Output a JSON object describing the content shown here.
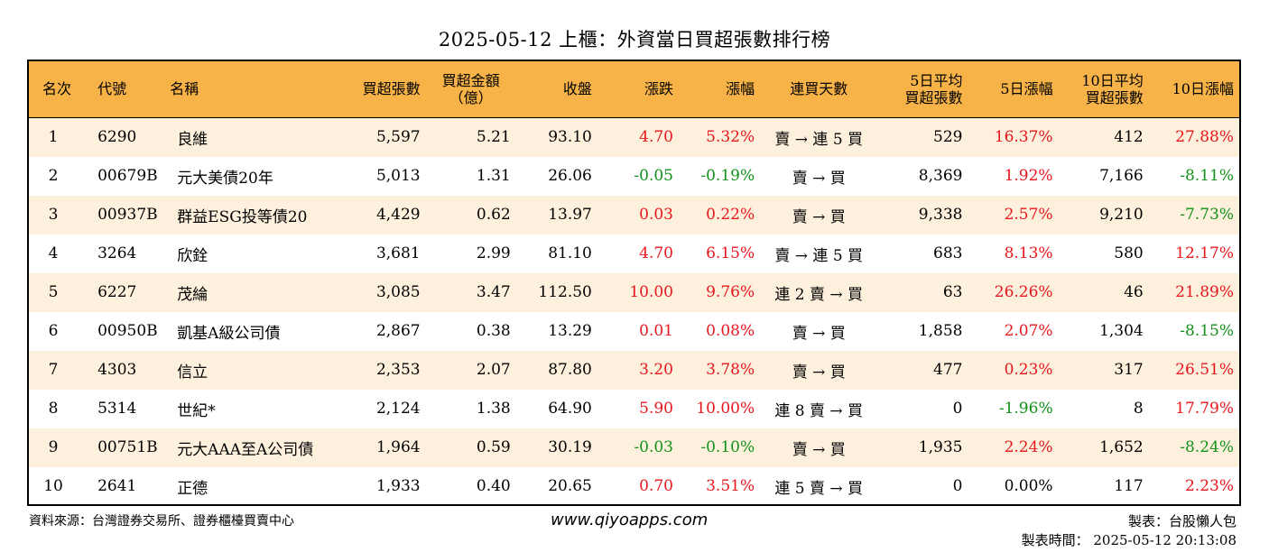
{
  "title": "2025-05-12 上櫃：外資當日買超張數排行榜",
  "colors": {
    "header_bg": "#f7b347",
    "row_alt": "#fdf1dd",
    "up": "#e8161d",
    "down": "#12911a"
  },
  "headers": [
    "名次",
    "代號",
    "名稱",
    "買超張數",
    "買超金額\n（億）",
    "收盤",
    "漲跌",
    "漲幅",
    "連買天數",
    "5日平均\n買超張數",
    "5日漲幅",
    "10日平均\n買超張數",
    "10日漲幅"
  ],
  "rows": [
    {
      "rank": "1",
      "code": "6290",
      "name": "良維",
      "net_buy": "5,597",
      "amount": "5.21",
      "close": "93.10",
      "change": "4.70",
      "change_dir": "up",
      "pct": "5.32%",
      "pct_dir": "up",
      "streak": "賣 → 連 5 買",
      "avg5": "529",
      "pct5": "16.37%",
      "pct5_dir": "up",
      "avg10": "412",
      "pct10": "27.88%",
      "pct10_dir": "up"
    },
    {
      "rank": "2",
      "code": "00679B",
      "name": "元大美債20年",
      "net_buy": "5,013",
      "amount": "1.31",
      "close": "26.06",
      "change": "-0.05",
      "change_dir": "down",
      "pct": "-0.19%",
      "pct_dir": "down",
      "streak": "賣 → 買",
      "avg5": "8,369",
      "pct5": "1.92%",
      "pct5_dir": "up",
      "avg10": "7,166",
      "pct10": "-8.11%",
      "pct10_dir": "down"
    },
    {
      "rank": "3",
      "code": "00937B",
      "name": "群益ESG投等債20",
      "net_buy": "4,429",
      "amount": "0.62",
      "close": "13.97",
      "change": "0.03",
      "change_dir": "up",
      "pct": "0.22%",
      "pct_dir": "up",
      "streak": "賣 → 買",
      "avg5": "9,338",
      "pct5": "2.57%",
      "pct5_dir": "up",
      "avg10": "9,210",
      "pct10": "-7.73%",
      "pct10_dir": "down"
    },
    {
      "rank": "4",
      "code": "3264",
      "name": "欣銓",
      "net_buy": "3,681",
      "amount": "2.99",
      "close": "81.10",
      "change": "4.70",
      "change_dir": "up",
      "pct": "6.15%",
      "pct_dir": "up",
      "streak": "賣 → 連 5 買",
      "avg5": "683",
      "pct5": "8.13%",
      "pct5_dir": "up",
      "avg10": "580",
      "pct10": "12.17%",
      "pct10_dir": "up"
    },
    {
      "rank": "5",
      "code": "6227",
      "name": "茂綸",
      "net_buy": "3,085",
      "amount": "3.47",
      "close": "112.50",
      "change": "10.00",
      "change_dir": "up",
      "pct": "9.76%",
      "pct_dir": "up",
      "streak": "連 2 賣 → 買",
      "avg5": "63",
      "pct5": "26.26%",
      "pct5_dir": "up",
      "avg10": "46",
      "pct10": "21.89%",
      "pct10_dir": "up"
    },
    {
      "rank": "6",
      "code": "00950B",
      "name": "凱基A級公司債",
      "net_buy": "2,867",
      "amount": "0.38",
      "close": "13.29",
      "change": "0.01",
      "change_dir": "up",
      "pct": "0.08%",
      "pct_dir": "up",
      "streak": "賣 → 買",
      "avg5": "1,858",
      "pct5": "2.07%",
      "pct5_dir": "up",
      "avg10": "1,304",
      "pct10": "-8.15%",
      "pct10_dir": "down"
    },
    {
      "rank": "7",
      "code": "4303",
      "name": "信立",
      "net_buy": "2,353",
      "amount": "2.07",
      "close": "87.80",
      "change": "3.20",
      "change_dir": "up",
      "pct": "3.78%",
      "pct_dir": "up",
      "streak": "賣 → 買",
      "avg5": "477",
      "pct5": "0.23%",
      "pct5_dir": "up",
      "avg10": "317",
      "pct10": "26.51%",
      "pct10_dir": "up"
    },
    {
      "rank": "8",
      "code": "5314",
      "name": "世紀*",
      "net_buy": "2,124",
      "amount": "1.38",
      "close": "64.90",
      "change": "5.90",
      "change_dir": "up",
      "pct": "10.00%",
      "pct_dir": "up",
      "streak": "連 8 賣 → 買",
      "avg5": "0",
      "pct5": "-1.96%",
      "pct5_dir": "down",
      "avg10": "8",
      "pct10": "17.79%",
      "pct10_dir": "up"
    },
    {
      "rank": "9",
      "code": "00751B",
      "name": "元大AAA至A公司債",
      "net_buy": "1,964",
      "amount": "0.59",
      "close": "30.19",
      "change": "-0.03",
      "change_dir": "down",
      "pct": "-0.10%",
      "pct_dir": "down",
      "streak": "賣 → 買",
      "avg5": "1,935",
      "pct5": "2.24%",
      "pct5_dir": "up",
      "avg10": "1,652",
      "pct10": "-8.24%",
      "pct10_dir": "down"
    },
    {
      "rank": "10",
      "code": "2641",
      "name": "正德",
      "net_buy": "1,933",
      "amount": "0.40",
      "close": "20.65",
      "change": "0.70",
      "change_dir": "up",
      "pct": "3.51%",
      "pct_dir": "up",
      "streak": "連 5 賣 → 買",
      "avg5": "0",
      "pct5": "0.00%",
      "pct5_dir": "flat",
      "avg10": "117",
      "pct10": "2.23%",
      "pct10_dir": "up"
    }
  ],
  "footer": {
    "source": "資料來源：台灣證券交易所、證券櫃檯買賣中心",
    "website": "www.qiyoapps.com",
    "maker": "製表：台股懶人包",
    "made_time": "製表時間： 2025-05-12 20:13:08"
  }
}
